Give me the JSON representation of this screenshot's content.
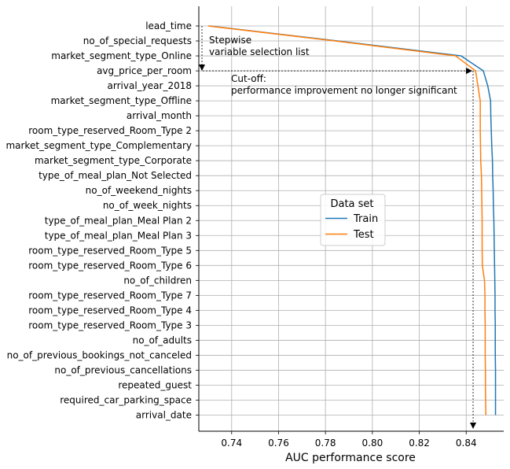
{
  "chart_data": {
    "type": "line",
    "xlabel": "AUC performance score",
    "ylabel": "",
    "title": "",
    "xlim": [
      0.726,
      0.856
    ],
    "xticks": [
      0.74,
      0.76,
      0.78,
      0.8,
      0.82,
      0.84
    ],
    "xtick_labels": [
      "0.74",
      "0.76",
      "0.78",
      "0.80",
      "0.82",
      "0.84"
    ],
    "grid": true,
    "legend": {
      "title": "Data set",
      "placement": "center-right"
    },
    "categories": [
      "lead_time",
      "no_of_special_requests",
      "market_segment_type_Online",
      "avg_price_per_room",
      "arrival_year_2018",
      "market_segment_type_Offline",
      "arrival_month",
      "room_type_reserved_Room_Type 2",
      "market_segment_type_Complementary",
      "market_segment_type_Corporate",
      "type_of_meal_plan_Not Selected",
      "no_of_weekend_nights",
      "no_of_week_nights",
      "type_of_meal_plan_Meal Plan 2",
      "type_of_meal_plan_Meal Plan 3",
      "room_type_reserved_Room_Type 5",
      "room_type_reserved_Room_Type 6",
      "no_of_children",
      "room_type_reserved_Room_Type 7",
      "room_type_reserved_Room_Type 4",
      "room_type_reserved_Room_Type 3",
      "no_of_adults",
      "no_of_previous_bookings_not_canceled",
      "no_of_previous_cancellations",
      "repeated_guest",
      "required_car_parking_space",
      "arrival_date"
    ],
    "series": [
      {
        "name": "Train",
        "color": "#1f77b4",
        "values": [
          0.7305,
          0.7851,
          0.8378,
          0.8473,
          0.8492,
          0.8504,
          0.8505,
          0.8507,
          0.8509,
          0.8512,
          0.8513,
          0.8515,
          0.8516,
          0.8518,
          0.8519,
          0.852,
          0.8521,
          0.8522,
          0.8523,
          0.8523,
          0.8524,
          0.8524,
          0.8524,
          0.8525,
          0.8525,
          0.8525,
          0.8525
        ]
      },
      {
        "name": "Test",
        "color": "#ff7f0e",
        "values": [
          0.73,
          0.784,
          0.8355,
          0.844,
          0.845,
          0.846,
          0.846,
          0.846,
          0.8461,
          0.8462,
          0.8465,
          0.8466,
          0.8467,
          0.8468,
          0.8468,
          0.8468,
          0.8469,
          0.8478,
          0.848,
          0.848,
          0.8481,
          0.8481,
          0.8481,
          0.8482,
          0.8482,
          0.8483,
          0.8484
        ]
      }
    ],
    "annotations": [
      {
        "id": "stepwise",
        "lines": [
          "Stepwise",
          "variable selection list"
        ]
      },
      {
        "id": "cutoff",
        "lines": [
          "Cut-off:",
          "performance improvement no longer significant"
        ]
      }
    ]
  }
}
